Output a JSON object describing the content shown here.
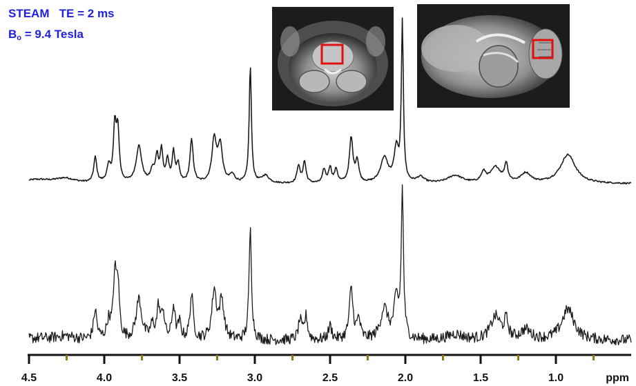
{
  "annotations": {
    "line1": "STEAM   TE = 2 ms",
    "line2_prefix": "B",
    "line2_sub": "o",
    "line2_suffix": " = 9.4 Tesla"
  },
  "insets": [
    {
      "name": "coronal-mri-inset",
      "description_icon": "brain-coronal-mri"
    },
    {
      "name": "sagittal-mri-inset",
      "description_icon": "brain-sagittal-mri"
    }
  ],
  "colors": {
    "annotation": "#1f1fe0",
    "trace": "#1a1a1a",
    "voi_box": "#e01010",
    "axis": "#111111",
    "minor_tick": "#8a7a1a"
  },
  "chart_data": {
    "type": "line",
    "title": "",
    "xlabel": "ppm",
    "ylabel": "",
    "xlim": [
      4.5,
      0.5
    ],
    "x_reversed": true,
    "grid": false,
    "xticks": [
      4.5,
      4.0,
      3.5,
      3.0,
      2.5,
      2.0,
      1.5,
      1.0
    ],
    "xtick_labels": [
      "4.5",
      "4.0",
      "3.5",
      "3.0",
      "2.5",
      "2.0",
      "1.5",
      "1.0"
    ],
    "minor_ticks": [
      4.25,
      3.75,
      3.25,
      2.75,
      2.25,
      1.75,
      1.25,
      0.75
    ],
    "series": [
      {
        "baseline": 0.02,
        "noise": 0.004,
        "peaks": [
          {
            "ppm": 4.45,
            "amp": 0.02,
            "w": 0.12
          },
          {
            "ppm": 4.26,
            "amp": 0.025,
            "w": 0.08
          },
          {
            "ppm": 4.06,
            "amp": 0.13,
            "w": 0.012
          },
          {
            "ppm": 3.97,
            "amp": 0.08,
            "w": 0.015
          },
          {
            "ppm": 3.93,
            "amp": 0.28,
            "w": 0.011
          },
          {
            "ppm": 3.91,
            "amp": 0.26,
            "w": 0.011
          },
          {
            "ppm": 3.77,
            "amp": 0.19,
            "w": 0.022
          },
          {
            "ppm": 3.68,
            "amp": 0.06,
            "w": 0.015
          },
          {
            "ppm": 3.65,
            "amp": 0.13,
            "w": 0.012
          },
          {
            "ppm": 3.62,
            "amp": 0.16,
            "w": 0.011
          },
          {
            "ppm": 3.58,
            "amp": 0.11,
            "w": 0.012
          },
          {
            "ppm": 3.54,
            "amp": 0.15,
            "w": 0.011
          },
          {
            "ppm": 3.51,
            "amp": 0.09,
            "w": 0.012
          },
          {
            "ppm": 3.42,
            "amp": 0.22,
            "w": 0.013
          },
          {
            "ppm": 3.27,
            "amp": 0.22,
            "w": 0.018
          },
          {
            "ppm": 3.23,
            "amp": 0.19,
            "w": 0.018
          },
          {
            "ppm": 3.15,
            "amp": 0.04,
            "w": 0.02
          },
          {
            "ppm": 3.03,
            "amp": 0.6,
            "w": 0.009
          },
          {
            "ppm": 2.93,
            "amp": 0.04,
            "w": 0.03
          },
          {
            "ppm": 2.71,
            "amp": 0.09,
            "w": 0.012
          },
          {
            "ppm": 2.67,
            "amp": 0.11,
            "w": 0.012
          },
          {
            "ppm": 2.54,
            "amp": 0.07,
            "w": 0.012
          },
          {
            "ppm": 2.5,
            "amp": 0.08,
            "w": 0.012
          },
          {
            "ppm": 2.46,
            "amp": 0.07,
            "w": 0.012
          },
          {
            "ppm": 2.36,
            "amp": 0.23,
            "w": 0.014
          },
          {
            "ppm": 2.32,
            "amp": 0.11,
            "w": 0.013
          },
          {
            "ppm": 2.14,
            "amp": 0.13,
            "w": 0.03
          },
          {
            "ppm": 2.06,
            "amp": 0.17,
            "w": 0.018
          },
          {
            "ppm": 2.02,
            "amp": 0.82,
            "w": 0.008
          },
          {
            "ppm": 1.9,
            "amp": 0.03,
            "w": 0.03
          },
          {
            "ppm": 1.67,
            "amp": 0.04,
            "w": 0.06
          },
          {
            "ppm": 1.48,
            "amp": 0.05,
            "w": 0.02
          },
          {
            "ppm": 1.4,
            "amp": 0.08,
            "w": 0.04
          },
          {
            "ppm": 1.33,
            "amp": 0.09,
            "w": 0.013
          },
          {
            "ppm": 1.2,
            "amp": 0.05,
            "w": 0.04
          },
          {
            "ppm": 0.92,
            "amp": 0.15,
            "w": 0.06
          }
        ]
      },
      {
        "baseline": 0.01,
        "noise": 0.028,
        "peaks": [
          {
            "ppm": 4.45,
            "amp": 0.01,
            "w": 0.12
          },
          {
            "ppm": 4.26,
            "amp": 0.02,
            "w": 0.08
          },
          {
            "ppm": 4.06,
            "amp": 0.15,
            "w": 0.013
          },
          {
            "ppm": 3.97,
            "amp": 0.09,
            "w": 0.016
          },
          {
            "ppm": 3.93,
            "amp": 0.3,
            "w": 0.012
          },
          {
            "ppm": 3.91,
            "amp": 0.27,
            "w": 0.012
          },
          {
            "ppm": 3.77,
            "amp": 0.21,
            "w": 0.022
          },
          {
            "ppm": 3.68,
            "amp": 0.07,
            "w": 0.015
          },
          {
            "ppm": 3.64,
            "amp": 0.16,
            "w": 0.012
          },
          {
            "ppm": 3.61,
            "amp": 0.14,
            "w": 0.012
          },
          {
            "ppm": 3.54,
            "amp": 0.17,
            "w": 0.012
          },
          {
            "ppm": 3.5,
            "amp": 0.08,
            "w": 0.012
          },
          {
            "ppm": 3.42,
            "amp": 0.23,
            "w": 0.013
          },
          {
            "ppm": 3.27,
            "amp": 0.25,
            "w": 0.018
          },
          {
            "ppm": 3.22,
            "amp": 0.2,
            "w": 0.018
          },
          {
            "ppm": 3.03,
            "amp": 0.57,
            "w": 0.01
          },
          {
            "ppm": 2.7,
            "amp": 0.1,
            "w": 0.013
          },
          {
            "ppm": 2.66,
            "amp": 0.12,
            "w": 0.013
          },
          {
            "ppm": 2.5,
            "amp": 0.07,
            "w": 0.015
          },
          {
            "ppm": 2.36,
            "amp": 0.26,
            "w": 0.015
          },
          {
            "ppm": 2.31,
            "amp": 0.1,
            "w": 0.013
          },
          {
            "ppm": 2.14,
            "amp": 0.16,
            "w": 0.03
          },
          {
            "ppm": 2.06,
            "amp": 0.2,
            "w": 0.018
          },
          {
            "ppm": 2.02,
            "amp": 0.75,
            "w": 0.009
          },
          {
            "ppm": 1.67,
            "amp": 0.03,
            "w": 0.06
          },
          {
            "ppm": 1.4,
            "amp": 0.12,
            "w": 0.04
          },
          {
            "ppm": 1.33,
            "amp": 0.09,
            "w": 0.015
          },
          {
            "ppm": 1.2,
            "amp": 0.05,
            "w": 0.04
          },
          {
            "ppm": 0.92,
            "amp": 0.16,
            "w": 0.05
          }
        ]
      }
    ]
  }
}
